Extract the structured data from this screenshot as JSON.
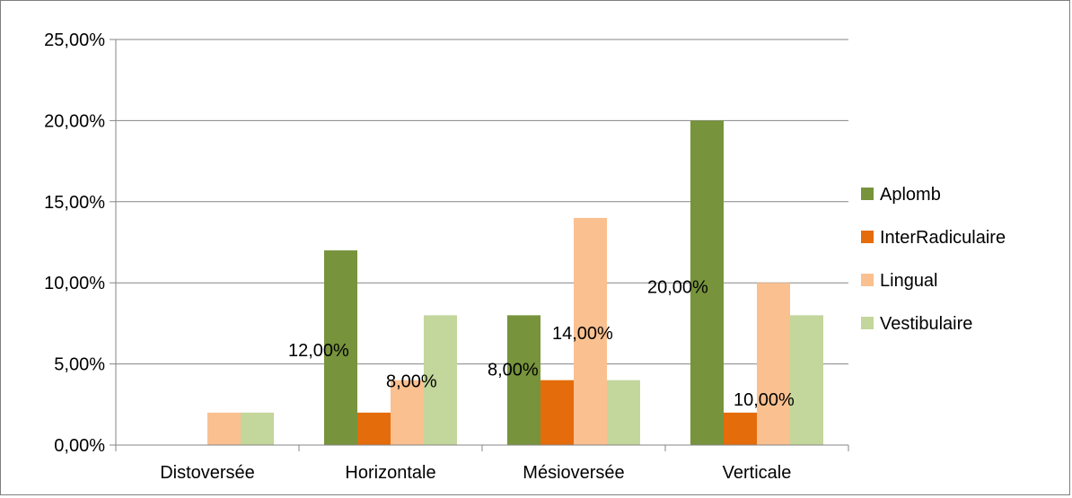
{
  "chart_data": {
    "type": "bar",
    "title": "",
    "xlabel": "",
    "ylabel": "",
    "categories": [
      "Distoversée",
      "Horizontale",
      "Mésioversée",
      "Verticale"
    ],
    "ylim": [
      0,
      25
    ],
    "y_ticks": [
      "0,00%",
      "5,00%",
      "10,00%",
      "15,00%",
      "20,00%",
      "25,00%"
    ],
    "grid": true,
    "legend_position": "right",
    "series": [
      {
        "name": "Aplomb",
        "color": "#77933C",
        "values": [
          0,
          12,
          8,
          20
        ]
      },
      {
        "name": "InterRadiculaire",
        "color": "#E46C0A",
        "values": [
          0,
          2,
          4,
          2
        ]
      },
      {
        "name": "Lingual",
        "color": "#FAC090",
        "values": [
          2,
          4,
          14,
          10
        ]
      },
      {
        "name": "Vestibulaire",
        "color": "#C3D69B",
        "values": [
          2,
          8,
          4,
          8
        ]
      }
    ],
    "data_labels": [
      {
        "text": "12,00%",
        "series": 0,
        "category": 1
      },
      {
        "text": "8,00%",
        "series": 0,
        "category": 2
      },
      {
        "text": "20,00%",
        "series": 0,
        "category": 3
      },
      {
        "text": "8,00%",
        "series": 3,
        "category": 1
      },
      {
        "text": "14,00%",
        "series": 2,
        "category": 2
      },
      {
        "text": "10,00%",
        "series": 2,
        "category": 3
      }
    ]
  }
}
